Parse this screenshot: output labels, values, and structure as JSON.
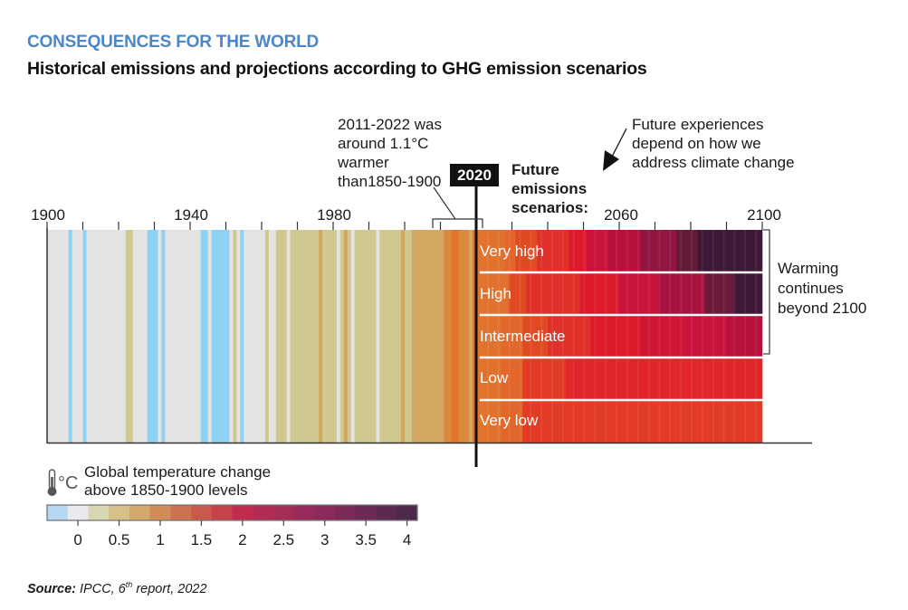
{
  "header": {
    "kicker": "CONSEQUENCES FOR THE WORLD",
    "title": "Historical emissions and projections according to GHG emission scenarios"
  },
  "chart_data": {
    "type": "heatmap",
    "title": "Historical emissions and projections according to GHG emission scenarios",
    "x_axis": {
      "range": [
        1900,
        2100
      ],
      "tick_step": 10,
      "tick_labels": [
        "1900",
        "1940",
        "1980",
        "2060",
        "2100"
      ],
      "labeled_ticks": [
        1900,
        1940,
        1980,
        2060,
        2100
      ]
    },
    "marker_year": 2020,
    "marker_label": "2020",
    "historical_bracket": [
      2011,
      2022
    ],
    "historical_anomalies": {
      "start_year": 1900,
      "end_year": 2021,
      "values": [
        0.0,
        0.0,
        0.0,
        0.0,
        0.0,
        0.0,
        -0.3,
        0.0,
        0.0,
        0.0,
        -0.3,
        0.0,
        0.0,
        0.0,
        0.0,
        0.0,
        0.0,
        0.0,
        0.0,
        0.0,
        0.0,
        0.0,
        0.3,
        0.3,
        0.0,
        0.0,
        0.0,
        0.0,
        -0.3,
        -0.3,
        -0.3,
        0.0,
        -0.2,
        0.0,
        0.0,
        0.0,
        0.0,
        0.0,
        0.0,
        0.0,
        0.0,
        0.0,
        0.0,
        -0.3,
        -0.3,
        0.0,
        -0.3,
        -0.3,
        -0.3,
        -0.3,
        -0.3,
        0.0,
        0.3,
        0.0,
        -0.3,
        0.0,
        0.0,
        0.0,
        0.0,
        0.0,
        0.0,
        0.3,
        0.0,
        0.0,
        0.3,
        0.3,
        0.3,
        0.0,
        0.3,
        0.3,
        0.3,
        0.3,
        0.3,
        0.3,
        0.3,
        0.3,
        0.55,
        0.3,
        0.3,
        0.3,
        0.3,
        0.0,
        0.3,
        0.55,
        0.3,
        0.0,
        0.3,
        0.3,
        0.3,
        0.3,
        0.3,
        0.3,
        0.0,
        0.3,
        0.3,
        0.3,
        0.3,
        0.3,
        0.3,
        0.55,
        0.3,
        0.3,
        0.55,
        0.55,
        0.55,
        0.55,
        0.55,
        0.55,
        0.55,
        0.55,
        0.55,
        0.8,
        0.8,
        0.9,
        0.9,
        0.8,
        0.8,
        0.8,
        0.65,
        0.9,
        0.85,
        0.85
      ],
      "description": "Approximate annual global temperature change (°C above 1850-1900) read from stripe colors"
    },
    "scenarios": [
      {
        "name": "Very high",
        "anomalies_2022_2100": "rises from ~1.2°C to >4°C; darkest purple after ~2075"
      },
      {
        "name": "High",
        "anomalies_2022_2100": "rises from ~1.2°C to ~3.5-4°C by 2100"
      },
      {
        "name": "Intermediate",
        "anomalies_2022_2100": "rises from ~1.2°C to ~2.5-3°C by 2100"
      },
      {
        "name": "Low",
        "anomalies_2022_2100": "stabilises around ~1.8-2°C"
      },
      {
        "name": "Very low",
        "anomalies_2022_2100": "stabilises around ~1.5-1.7°C"
      }
    ],
    "scenario_segments": [
      {
        "name": "Very high",
        "breaks": [
          2022,
          2028,
          2031,
          2037,
          2046,
          2051,
          2057,
          2066,
          2076,
          2082,
          2100
        ],
        "values": [
          1.2,
          1.3,
          1.5,
          1.7,
          1.9,
          2.2,
          2.5,
          3.0,
          3.4,
          4.0
        ]
      },
      {
        "name": "High",
        "breaks": [
          2022,
          2029,
          2034,
          2049,
          2060,
          2071,
          2084,
          2092,
          2100
        ],
        "values": [
          1.2,
          1.5,
          1.7,
          1.9,
          2.2,
          2.6,
          3.3,
          4.0
        ]
      },
      {
        "name": "Intermediate",
        "breaks": [
          2022,
          2027,
          2033,
          2040,
          2052,
          2066,
          2078,
          2090,
          2100
        ],
        "values": [
          1.2,
          1.3,
          1.5,
          1.7,
          1.9,
          2.1,
          2.3,
          2.5
        ]
      },
      {
        "name": "Low",
        "breaks": [
          2022,
          2027,
          2033,
          2045,
          2100
        ],
        "values": [
          1.2,
          1.3,
          1.6,
          1.8
        ]
      },
      {
        "name": "Very low",
        "breaks": [
          2022,
          2027,
          2033,
          2100
        ],
        "values": [
          1.2,
          1.3,
          1.6
        ]
      }
    ],
    "colorbar": {
      "label": "Global temperature change above 1850-1900 levels",
      "unit": "°C",
      "ticks": [
        "0",
        "0.5",
        "1",
        "1.5",
        "2",
        "2.5",
        "3",
        "3.5",
        "4"
      ],
      "tick_values": [
        0,
        0.5,
        1,
        1.5,
        2,
        2.5,
        3,
        3.5,
        4
      ],
      "range": [
        -0.375,
        4.125
      ],
      "bins": 18,
      "colors": [
        "#b6d8f2",
        "#e9e9ee",
        "#d9d7b2",
        "#d7c089",
        "#d4aa6c",
        "#d08c57",
        "#cd7250",
        "#c9594b",
        "#c64148",
        "#c02c4c",
        "#b02c55",
        "#a62d58",
        "#972b5a",
        "#8a295a",
        "#7b2958",
        "#6c2856",
        "#5d2852",
        "#4e284c"
      ]
    },
    "annotations": [
      "2011-2022 was around 1.1°C warmer than1850-1900",
      "Future experiences depend on how we address climate change",
      "Warming continues beyond 2100"
    ]
  },
  "labels": {
    "ticks": {
      "t1900": "1900",
      "t1940": "1940",
      "t1980": "1980",
      "t2060": "2060",
      "t2100": "2100"
    },
    "year_box": "2020",
    "future_label": [
      "Future",
      "emissions",
      "scenarios:"
    ],
    "annot_2011": [
      "2011-2022 was",
      "around 1.1°C",
      "warmer",
      "than1850-1900"
    ],
    "annot_future": [
      "Future experiences",
      "depend on how we",
      "address climate change"
    ],
    "warming_note": [
      "Warming",
      "continues",
      "beyond 2100"
    ],
    "scenarios": [
      "Very high",
      "High",
      "Intermediate",
      "Low",
      "Very low"
    ],
    "legend_title": [
      "Global temperature change",
      "above 1850-1900 levels"
    ],
    "legend_icon": "thermometer-celsius-icon",
    "legend_unit": "°C"
  },
  "source": {
    "label": "Source:",
    "text_a": " IPCC, 6",
    "sup": "th",
    "text_b": " report, 2022"
  }
}
